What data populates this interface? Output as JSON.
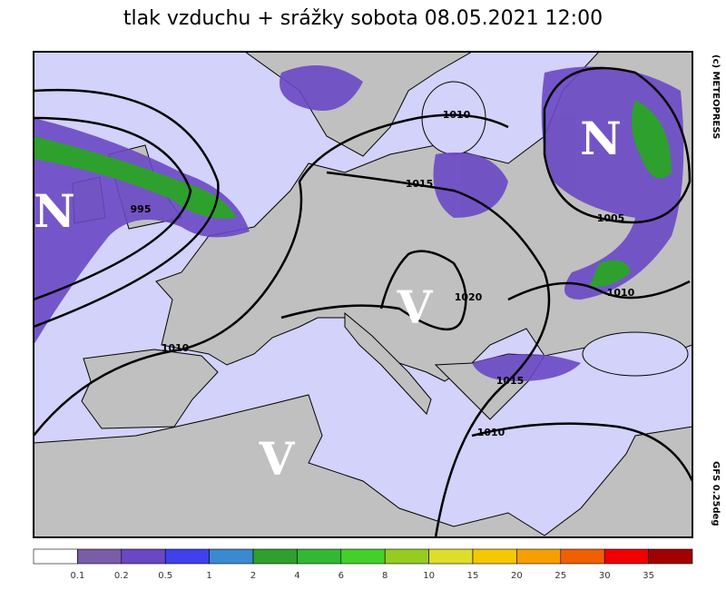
{
  "header": {
    "title": "tlak vzduchu + srážky  sobota 08.05.2021 12:00"
  },
  "side": {
    "copyright": "(c) METEOPRESS",
    "model": "GFS 0.25deg"
  },
  "map": {
    "systems": [
      "N",
      "N",
      "V",
      "V"
    ],
    "isobar_labels": [
      "1010",
      "1015",
      "995",
      "1005",
      "1010",
      "1020",
      "1010",
      "1015",
      "1010"
    ]
  },
  "legend": {
    "colors": [
      "#ffffff",
      "#7b5ca6",
      "#6a48c4",
      "#4040ee",
      "#3a8ad0",
      "#2ea02e",
      "#34b834",
      "#44d02a",
      "#96cc20",
      "#dede2a",
      "#f5c800",
      "#f5a000",
      "#f06000",
      "#f00000",
      "#a00000"
    ],
    "labels": [
      0.1,
      0.2,
      0.5,
      1,
      2,
      4,
      6,
      8,
      10,
      15,
      20,
      25,
      30,
      35
    ]
  }
}
